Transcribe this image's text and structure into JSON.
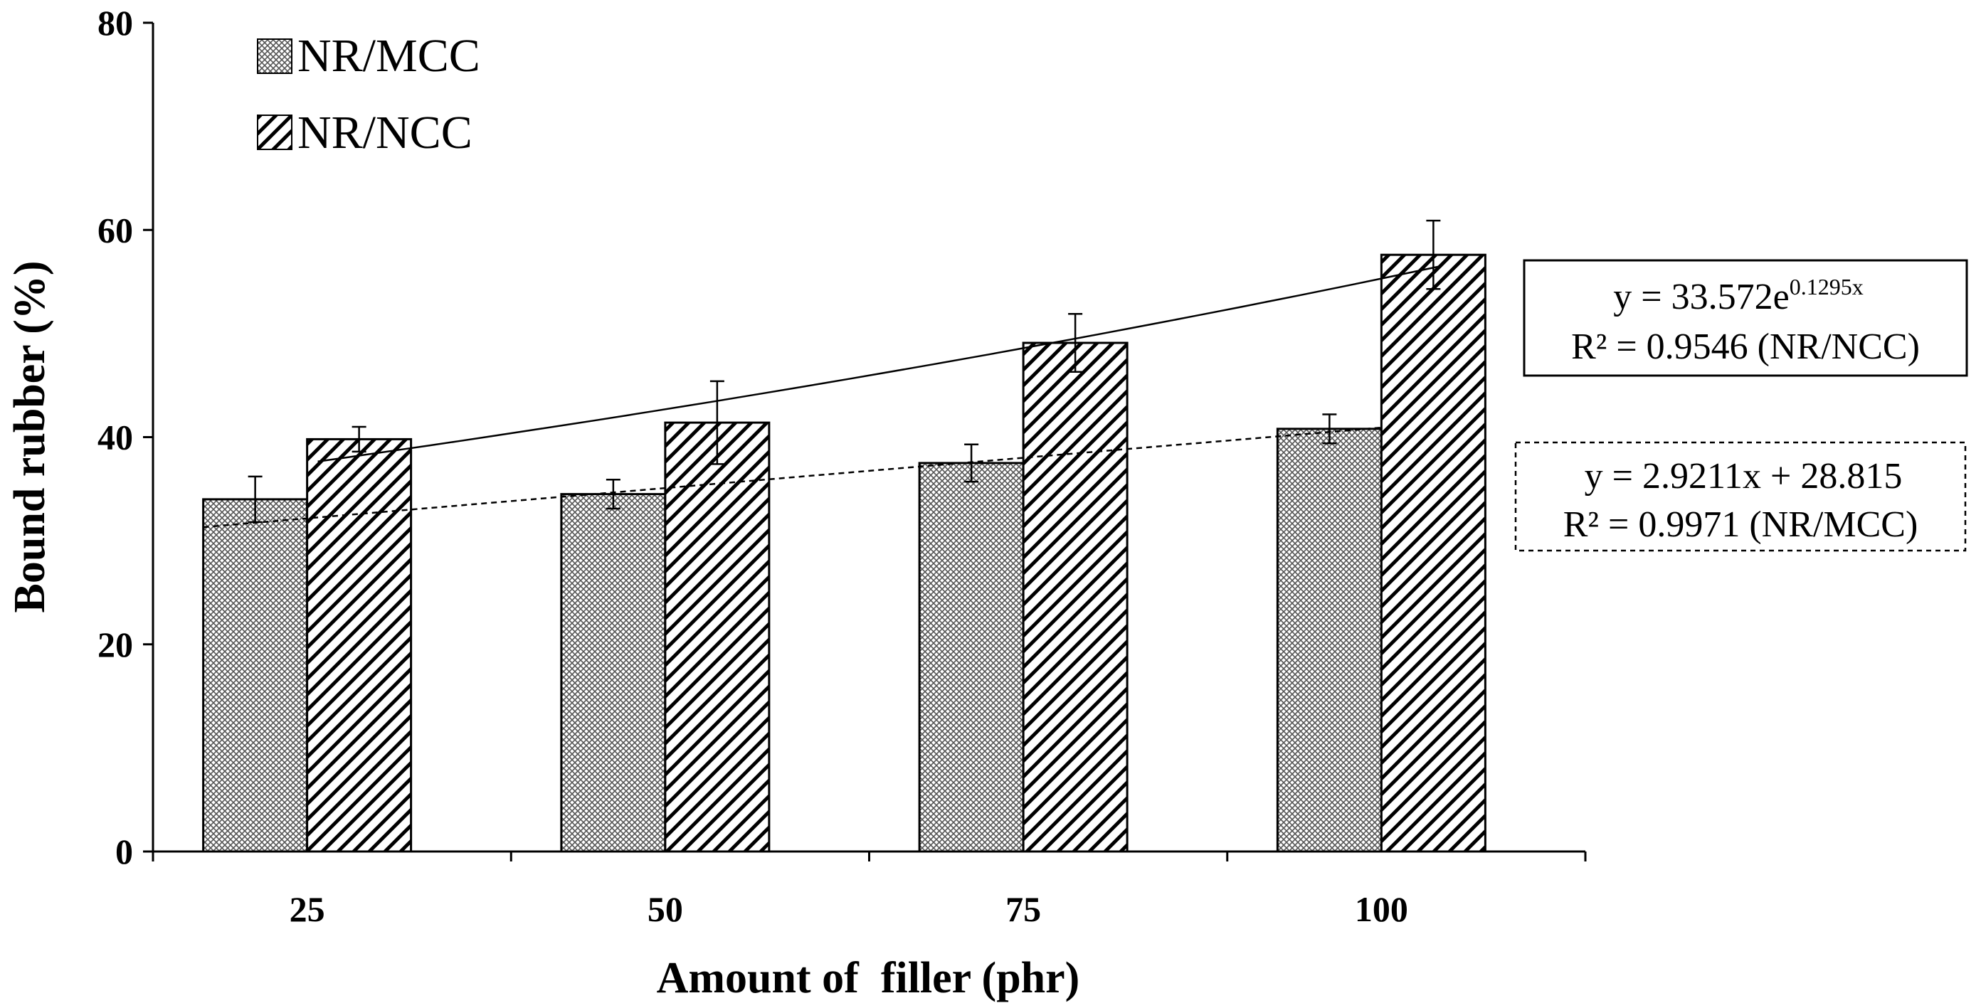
{
  "chart_data": {
    "type": "bar",
    "title": "",
    "xlabel": "Amount of  filler (phr)",
    "ylabel": "Bound rubber (%)",
    "ylim": [
      0,
      80
    ],
    "yticks": [
      "0",
      "20",
      "40",
      "60",
      "80"
    ],
    "categories": [
      "25",
      "50",
      "75",
      "100"
    ],
    "category_values": [
      25,
      50,
      75,
      100
    ],
    "series": [
      {
        "name": "NR/MCC",
        "pattern": "crosshatch",
        "values": [
          34,
          34.5,
          37.5,
          40.8
        ],
        "errors": [
          2.2,
          1.4,
          1.8,
          1.4
        ]
      },
      {
        "name": "NR/NCC",
        "pattern": "diagonal",
        "values": [
          39.8,
          41.4,
          49.1,
          57.6
        ],
        "errors": [
          1.2,
          4.0,
          2.8,
          3.3
        ]
      }
    ],
    "trendlines": [
      {
        "series": "NR/NCC",
        "kind": "exponential",
        "a": 33.572,
        "b": 0.1295,
        "eq_prefix": "y = 33.572e",
        "eq_exponent": "0.1295x",
        "r2_label": "R² = 0.9546 (NR/NCC)",
        "style": "solid"
      },
      {
        "series": "NR/MCC",
        "kind": "linear",
        "slope": 2.9211,
        "intercept": 28.815,
        "eq_label": "y = 2.9211x + 28.815",
        "r2_label": "R² = 0.9971 (NR/MCC)",
        "style": "dashed"
      }
    ],
    "legend": [
      {
        "label": "NR/MCC",
        "pattern": "crosshatch"
      },
      {
        "label": "NR/NCC",
        "pattern": "diagonal"
      }
    ],
    "legend_position": "top-left",
    "grid": false
  }
}
